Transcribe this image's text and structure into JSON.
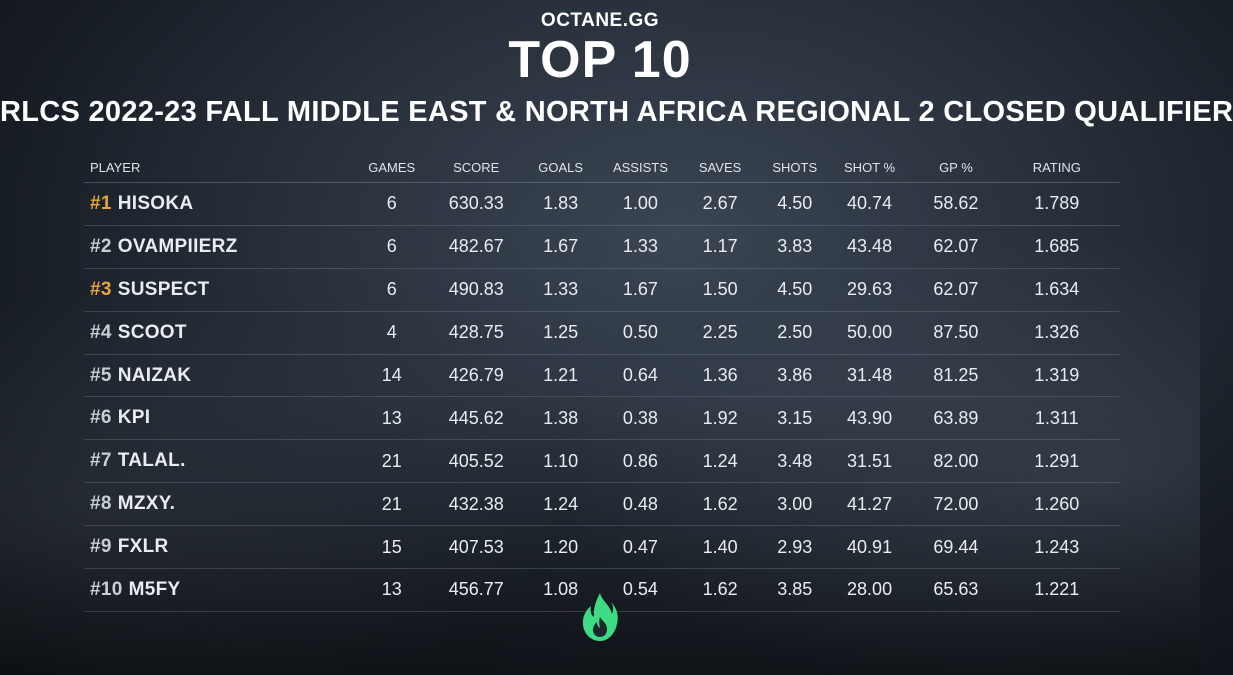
{
  "header": {
    "brand": "OCTANE.GG",
    "title": "TOP 10",
    "subtitle": "RLCS 2022-23 FALL MIDDLE EAST & NORTH AFRICA REGIONAL 2 CLOSED QUALIFIER"
  },
  "table": {
    "columns": [
      "PLAYER",
      "GAMES",
      "SCORE",
      "GOALS",
      "ASSISTS",
      "SAVES",
      "SHOTS",
      "SHOT %",
      "GP %",
      "RATING"
    ],
    "rows": [
      {
        "rank": "#1",
        "name": "HISOKA",
        "games": "6",
        "score": "630.33",
        "goals": "1.83",
        "assists": "1.00",
        "saves": "2.67",
        "shots": "4.50",
        "shot_pct": "40.74",
        "gp_pct": "58.62",
        "rating": "1.789"
      },
      {
        "rank": "#2",
        "name": "OVAMPIIERZ",
        "games": "6",
        "score": "482.67",
        "goals": "1.67",
        "assists": "1.33",
        "saves": "1.17",
        "shots": "3.83",
        "shot_pct": "43.48",
        "gp_pct": "62.07",
        "rating": "1.685"
      },
      {
        "rank": "#3",
        "name": "SUSPECT",
        "games": "6",
        "score": "490.83",
        "goals": "1.33",
        "assists": "1.67",
        "saves": "1.50",
        "shots": "4.50",
        "shot_pct": "29.63",
        "gp_pct": "62.07",
        "rating": "1.634"
      },
      {
        "rank": "#4",
        "name": "SCOOT",
        "games": "4",
        "score": "428.75",
        "goals": "1.25",
        "assists": "0.50",
        "saves": "2.25",
        "shots": "2.50",
        "shot_pct": "50.00",
        "gp_pct": "87.50",
        "rating": "1.326"
      },
      {
        "rank": "#5",
        "name": "NAIZAK",
        "games": "14",
        "score": "426.79",
        "goals": "1.21",
        "assists": "0.64",
        "saves": "1.36",
        "shots": "3.86",
        "shot_pct": "31.48",
        "gp_pct": "81.25",
        "rating": "1.319"
      },
      {
        "rank": "#6",
        "name": "KPI",
        "games": "13",
        "score": "445.62",
        "goals": "1.38",
        "assists": "0.38",
        "saves": "1.92",
        "shots": "3.15",
        "shot_pct": "43.90",
        "gp_pct": "63.89",
        "rating": "1.311"
      },
      {
        "rank": "#7",
        "name": "TALAL.",
        "games": "21",
        "score": "405.52",
        "goals": "1.10",
        "assists": "0.86",
        "saves": "1.24",
        "shots": "3.48",
        "shot_pct": "31.51",
        "gp_pct": "82.00",
        "rating": "1.291"
      },
      {
        "rank": "#8",
        "name": "MZXY.",
        "games": "21",
        "score": "432.38",
        "goals": "1.24",
        "assists": "0.48",
        "saves": "1.62",
        "shots": "3.00",
        "shot_pct": "41.27",
        "gp_pct": "72.00",
        "rating": "1.260"
      },
      {
        "rank": "#9",
        "name": "FXLR",
        "games": "15",
        "score": "407.53",
        "goals": "1.20",
        "assists": "0.47",
        "saves": "1.40",
        "shots": "2.93",
        "shot_pct": "40.91",
        "gp_pct": "69.44",
        "rating": "1.243"
      },
      {
        "rank": "#10",
        "name": "M5FY",
        "games": "13",
        "score": "456.77",
        "goals": "1.08",
        "assists": "0.54",
        "saves": "1.62",
        "shots": "3.85",
        "shot_pct": "28.00",
        "gp_pct": "65.63",
        "rating": "1.221"
      }
    ]
  },
  "colors": {
    "rank_gold": "#e6a53a",
    "rank_default": "#c9ced6",
    "logo_green": "#3ddc84"
  },
  "logo": {
    "icon": "flame-icon"
  }
}
